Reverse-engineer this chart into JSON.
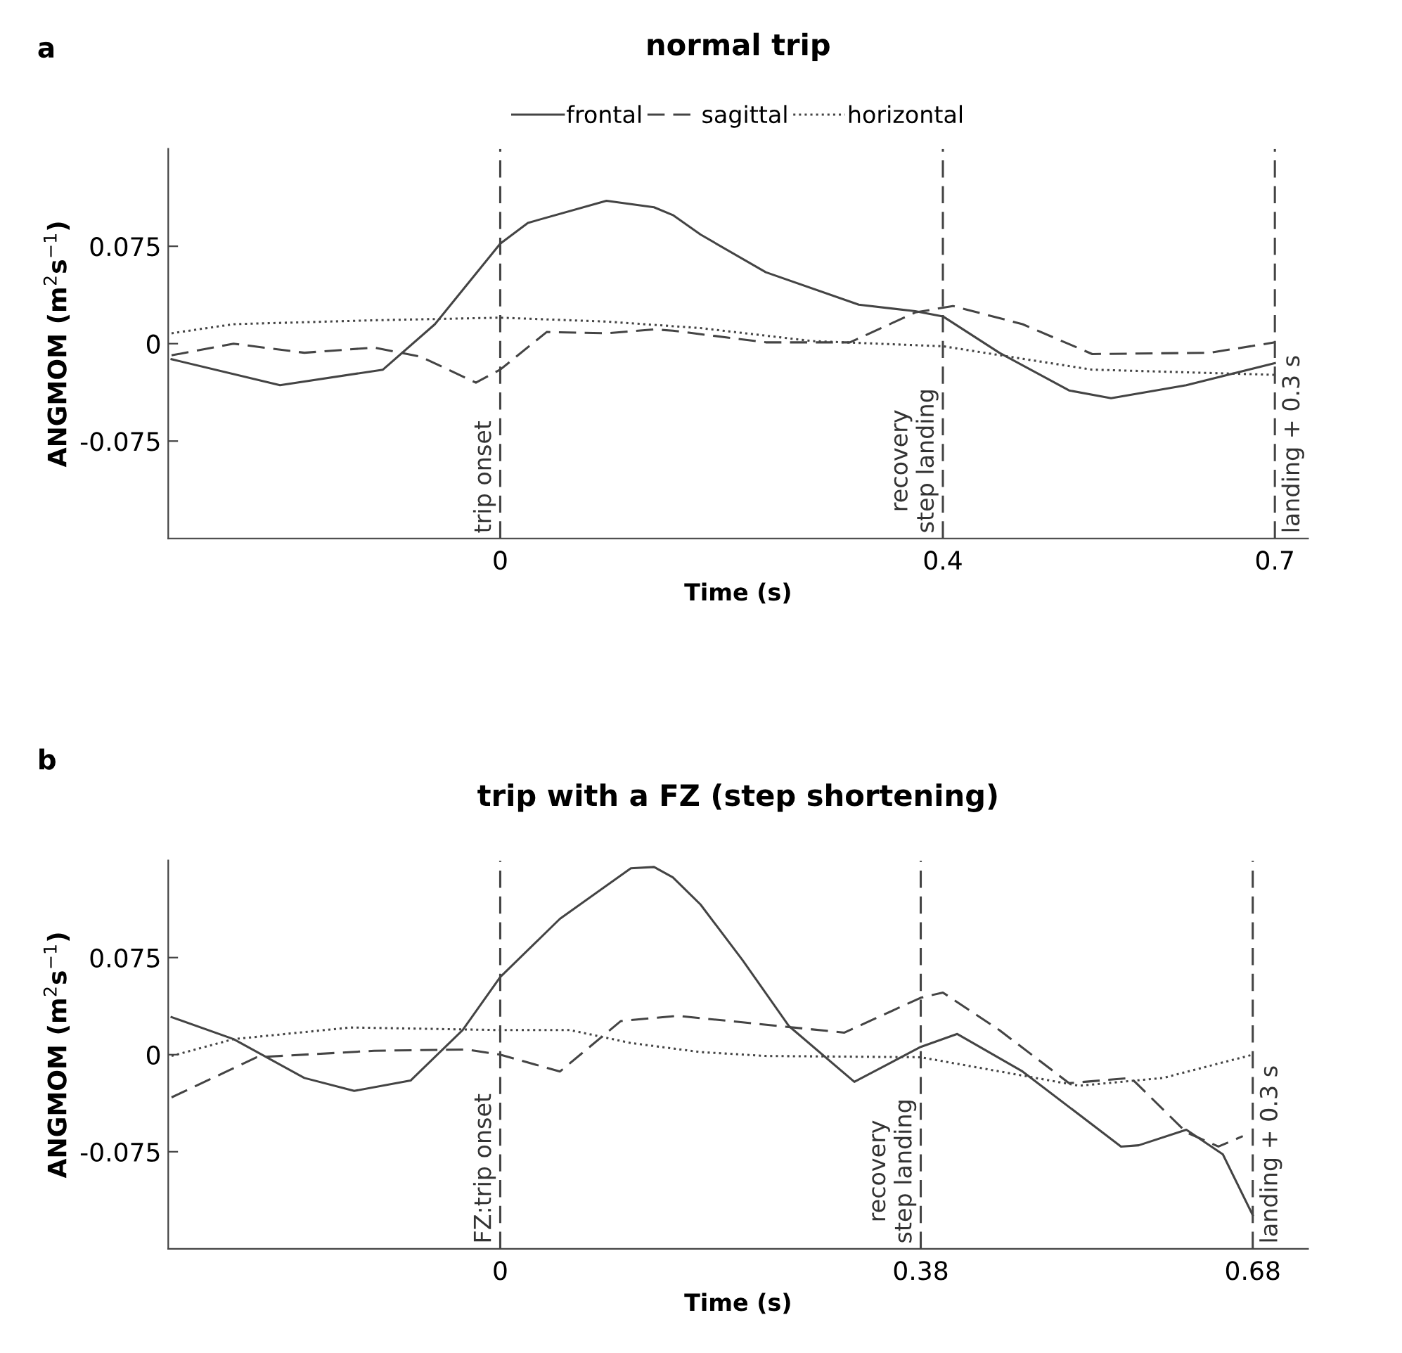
{
  "chart_data": [
    {
      "type": "line",
      "title": "normal trip",
      "xlabel": "Time (s)",
      "ylabel": "ANGMOM (m$^{2}$s$^{−1}$)",
      "annotations": [
        "a"
      ],
      "xlim": [
        -0.3,
        0.73
      ],
      "ylim": [
        -0.15,
        0.15
      ],
      "xticks": [
        0,
        0.4,
        0.7
      ],
      "yticks": [
        {
          "value": -0.075,
          "label": "-0.075"
        },
        0,
        0.075
      ],
      "grid": false,
      "legend": "top",
      "marker": "none",
      "series": [
        {
          "name": "frontal",
          "color": "#444444",
          "line_style": "solid",
          "x": [
            -0.297,
            -0.199,
            -0.106,
            -0.059,
            0,
            0.025,
            0.096,
            0.139,
            0.156,
            0.181,
            0.24,
            0.324,
            0.375,
            0.4,
            0.451,
            0.514,
            0.552,
            0.62,
            0.7
          ],
          "values": [
            -0.012,
            -0.032,
            -0.02,
            0.015,
            0.077,
            0.093,
            0.11,
            0.105,
            0.099,
            0.084,
            0.055,
            0.03,
            0.025,
            0.021,
            -0.007,
            -0.036,
            -0.042,
            -0.032,
            -0.015
          ]
        },
        {
          "name": "sagittal",
          "color": "#444444",
          "line_style": "dashed",
          "x": [
            -0.297,
            -0.241,
            -0.177,
            -0.114,
            -0.072,
            -0.022,
            0,
            0.042,
            0.096,
            0.139,
            0.156,
            0.24,
            0.316,
            0.375,
            0.409,
            0.472,
            0.535,
            0.641,
            0.7
          ],
          "values": [
            -0.009,
            0,
            -0.007,
            -0.003,
            -0.01,
            -0.03,
            -0.02,
            0.009,
            0.008,
            0.011,
            0.01,
            0.001,
            0.001,
            0.024,
            0.029,
            0.015,
            -0.008,
            -0.007,
            0.001
          ]
        },
        {
          "name": "horizontal",
          "color": "#444444",
          "line_style": "dotted",
          "x": [
            -0.297,
            -0.241,
            -0.114,
            0,
            0.096,
            0.181,
            0.282,
            0.4,
            0.535,
            0.7
          ],
          "values": [
            0.008,
            0.015,
            0.018,
            0.02,
            0.017,
            0.012,
            0.002,
            -0.002,
            -0.02,
            -0.024
          ]
        }
      ],
      "ref_lines": [
        {
          "axis": "x",
          "value": 0,
          "label": "trip onset",
          "color": "#444444",
          "line_style": "dashed"
        },
        {
          "axis": "x",
          "value": 0.4,
          "label": "recovery\nstep landing",
          "color": "#444444",
          "line_style": "dashed"
        },
        {
          "axis": "x",
          "value": 0.7,
          "label": "landing + 0.3 s",
          "color": "#444444",
          "line_style": "dashed"
        }
      ]
    },
    {
      "type": "line",
      "title": "trip with a FZ (step shortening)",
      "xlabel": "Time (s)",
      "ylabel": "ANGMOM (m$^{2}$s$^{−1}$)",
      "annotations": [
        "b"
      ],
      "xlim": [
        -0.3,
        0.73
      ],
      "ylim": [
        -0.15,
        0.15
      ],
      "xticks": [
        0,
        0.38,
        0.68
      ],
      "yticks": [
        {
          "value": -0.075,
          "label": "-0.075"
        },
        0,
        0.075
      ],
      "grid": false,
      "legend": false,
      "marker": "none",
      "series": [
        {
          "color": "#444444",
          "line_style": "solid",
          "x": [
            -0.297,
            -0.241,
            -0.177,
            -0.132,
            -0.081,
            -0.034,
            0,
            0.054,
            0.118,
            0.139,
            0.156,
            0.181,
            0.219,
            0.261,
            0.32,
            0.38,
            0.413,
            0.472,
            0.561,
            0.577,
            0.62,
            0.653,
            0.68
          ],
          "values": [
            0.029,
            0.012,
            -0.018,
            -0.028,
            -0.02,
            0.019,
            0.06,
            0.105,
            0.144,
            0.145,
            0.137,
            0.116,
            0.073,
            0.022,
            -0.021,
            0.006,
            0.016,
            -0.013,
            -0.071,
            -0.07,
            -0.058,
            -0.077,
            -0.124
          ]
        },
        {
          "color": "#444444",
          "line_style": "dashed",
          "x": [
            -0.297,
            -0.22,
            -0.114,
            -0.03,
            0,
            0.054,
            0.109,
            0.16,
            0.219,
            0.311,
            0.38,
            0.4,
            0.451,
            0.514,
            0.57,
            0.62,
            0.649,
            0.671
          ],
          "values": [
            -0.033,
            -0.002,
            0.003,
            0.004,
            0,
            -0.013,
            0.026,
            0.03,
            0.025,
            0.017,
            0.044,
            0.048,
            0.019,
            -0.022,
            -0.018,
            -0.06,
            -0.071,
            -0.063
          ]
        },
        {
          "color": "#444444",
          "line_style": "dotted",
          "x": [
            -0.297,
            -0.241,
            -0.135,
            0,
            0.063,
            0.118,
            0.181,
            0.24,
            0.38,
            0.523,
            0.599,
            0.68
          ],
          "values": [
            -0.001,
            0.012,
            0.021,
            0.019,
            0.019,
            0.009,
            0.002,
            -0.001,
            -0.002,
            -0.024,
            -0.018,
            0
          ]
        }
      ],
      "ref_lines": [
        {
          "axis": "x",
          "value": 0,
          "label": "FZ:trip onset",
          "color": "#444444",
          "line_style": "dashed"
        },
        {
          "axis": "x",
          "value": 0.38,
          "label": "recovery\nstep landing",
          "color": "#444444",
          "line_style": "dashed"
        },
        {
          "axis": "x",
          "value": 0.68,
          "label": "landing + 0.3 s",
          "color": "#444444",
          "line_style": "dashed"
        }
      ]
    }
  ]
}
